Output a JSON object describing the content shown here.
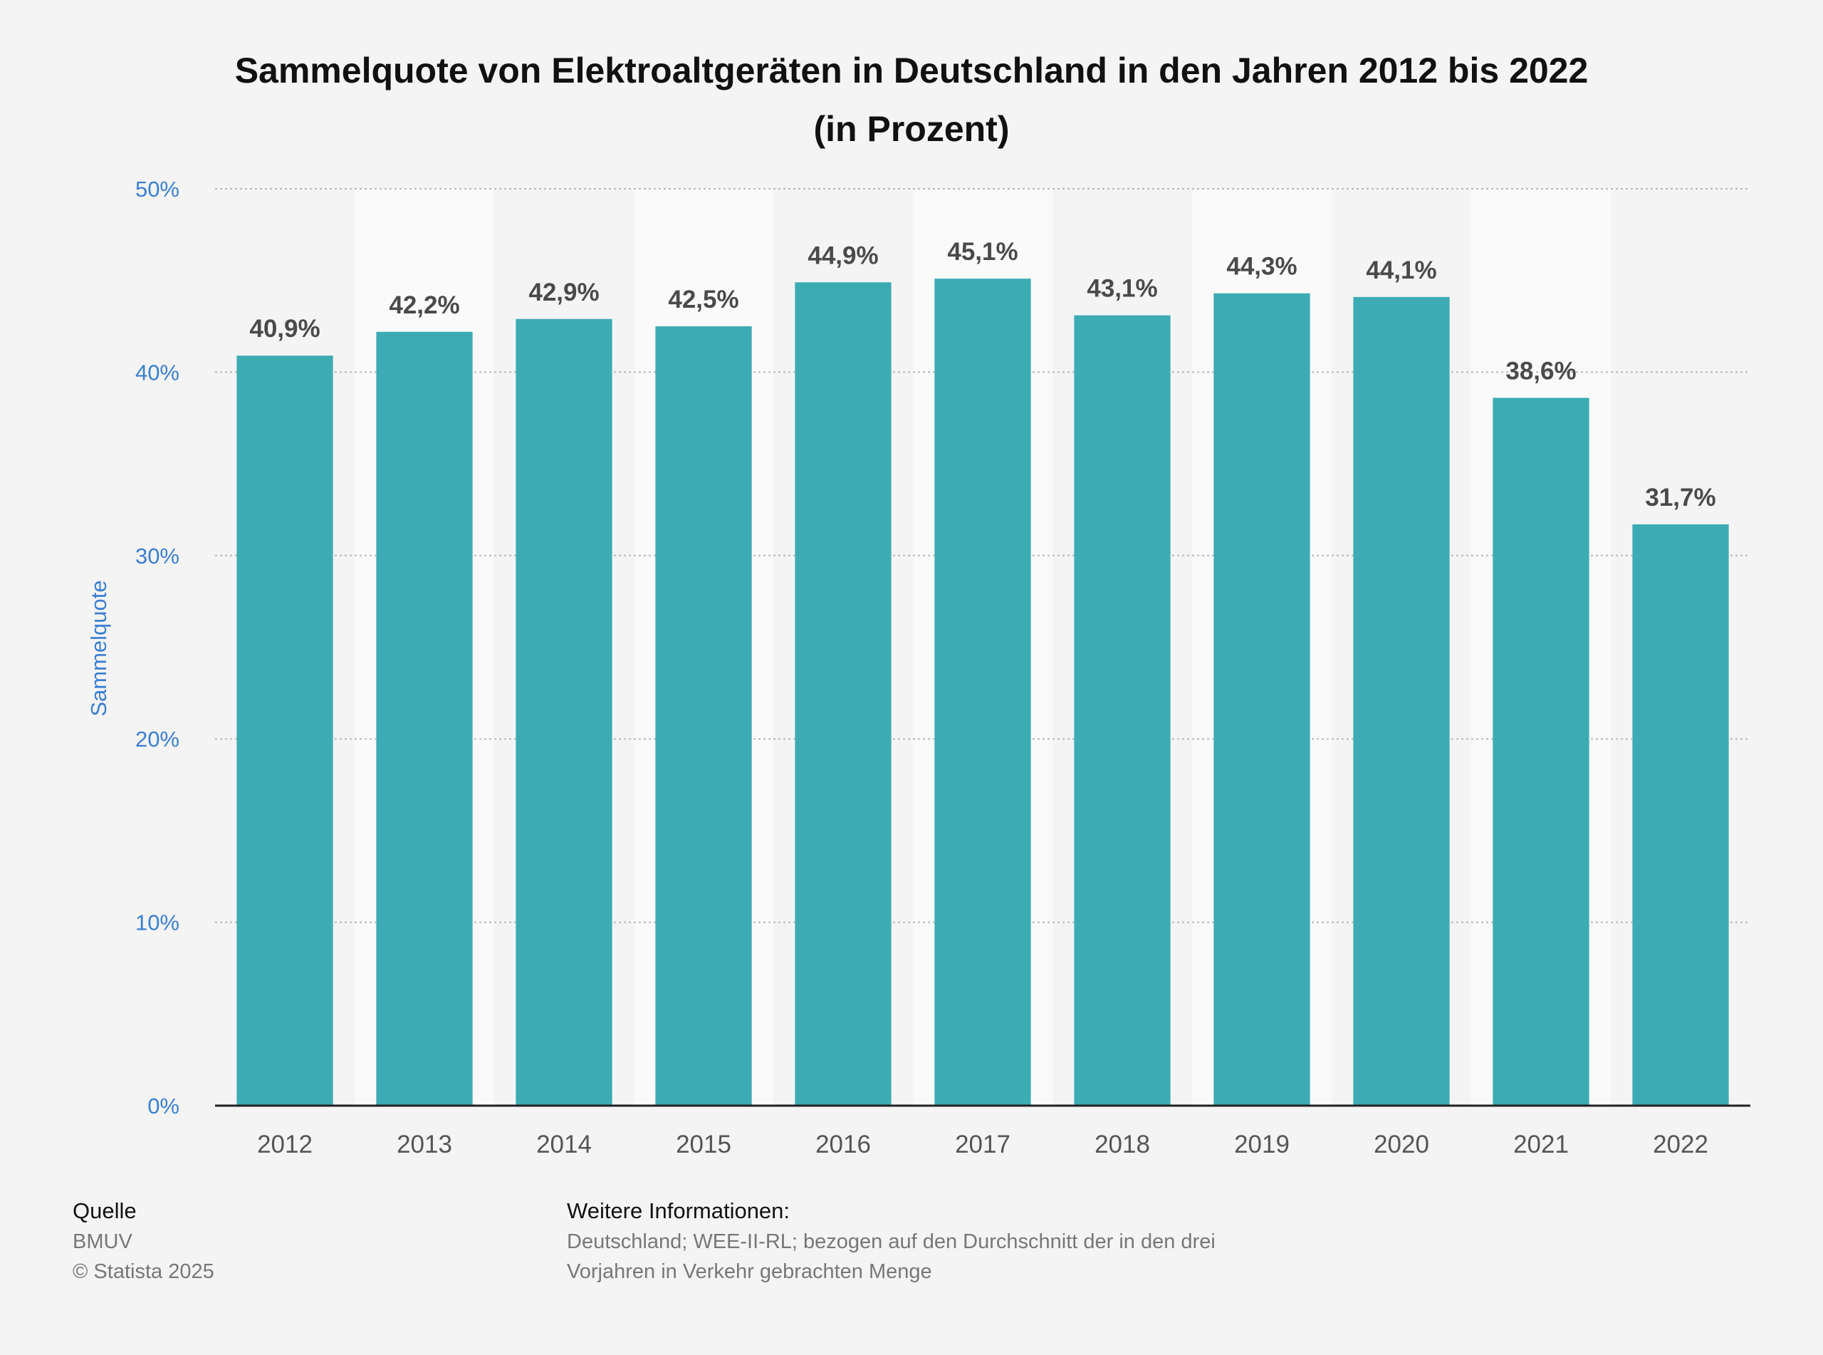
{
  "title_line1": "Sammelquote von Elektroaltgeräten in Deutschland in den Jahren 2012 bis 2022",
  "title_line2": "(in Prozent)",
  "chart_data": {
    "type": "bar",
    "title": "Sammelquote von Elektroaltgeräten in Deutschland in den Jahren 2012 bis 2022 (in Prozent)",
    "xlabel": "",
    "ylabel": "Sammelquote",
    "categories": [
      "2012",
      "2013",
      "2014",
      "2015",
      "2016",
      "2017",
      "2018",
      "2019",
      "2020",
      "2021",
      "2022"
    ],
    "values": [
      40.9,
      42.2,
      42.9,
      42.5,
      44.9,
      45.1,
      43.1,
      44.3,
      44.1,
      38.6,
      31.7
    ],
    "value_labels": [
      "40,9%",
      "42,2%",
      "42,9%",
      "42,5%",
      "44,9%",
      "45,1%",
      "43,1%",
      "44,3%",
      "44,1%",
      "38,6%",
      "31,7%"
    ],
    "ylim": [
      0,
      50
    ],
    "yticks": [
      0,
      10,
      20,
      30,
      40,
      50
    ],
    "ytick_labels": [
      "0%",
      "10%",
      "20%",
      "30%",
      "40%",
      "50%"
    ],
    "grid": true,
    "bar_color": "#3dabb4",
    "band_color": "#fafafa",
    "axis_label_color": "#3a7fd0"
  },
  "source": {
    "heading": "Quelle",
    "name": "BMUV",
    "copyright": "© Statista 2025"
  },
  "info": {
    "heading": "Weitere Informationen:",
    "line1": "Deutschland; WEE-II-RL; bezogen auf den Durchschnitt der in den drei",
    "line2": "Vorjahren in Verkehr gebrachten Menge"
  }
}
